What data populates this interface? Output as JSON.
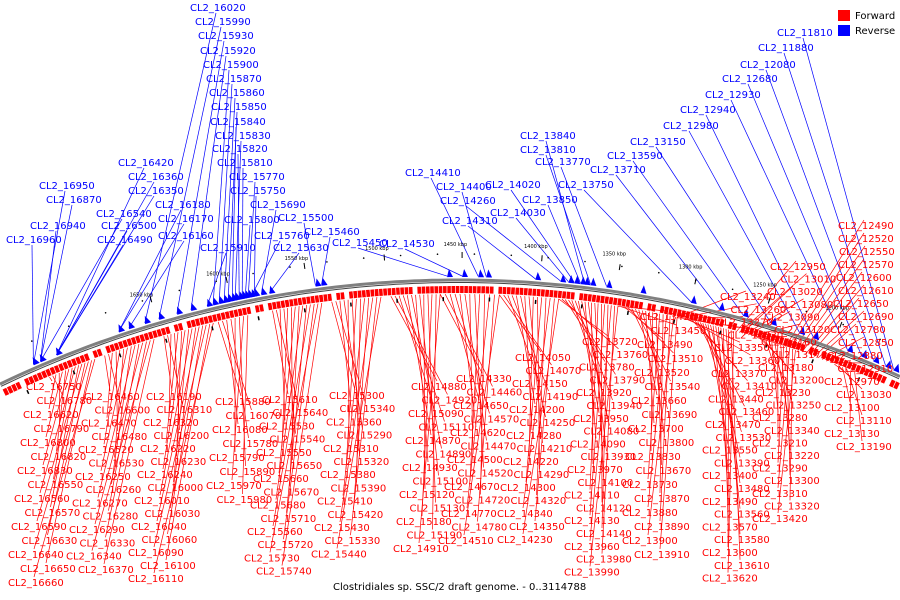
{
  "caption": "Clostridiales sp. SSC/2 draft genome. - 0..3114788",
  "legend": {
    "items": [
      {
        "label": "Forward",
        "color": "#ff0000"
      },
      {
        "label": "Reverse",
        "color": "#0000ff"
      }
    ]
  },
  "colors": {
    "forward": "#ff0000",
    "reverse": "#0000ff",
    "backbone": "#808080"
  },
  "kbp_ticks": [
    "1200 kbp",
    "1250 kbp",
    "1300 kbp",
    "1350 kbp",
    "1400 kbp",
    "1450 kbp",
    "1500 kbp",
    "1550 kbp",
    "1600 kbp",
    "1650 kbp"
  ],
  "reverse_labels": [
    "CL2_11810",
    "CL2_11880",
    "CL2_12080",
    "CL2_12680",
    "CL2_12930",
    "CL2_12940",
    "CL2_12980",
    "CL2_13150",
    "CL2_13590",
    "CL2_13710",
    "CL2_13750",
    "CL2_13770",
    "CL2_13810",
    "CL2_13840",
    "CL2_13850",
    "CL2_14020",
    "CL2_14030",
    "CL2_14260",
    "CL2_14310",
    "CL2_14400",
    "CL2_14410",
    "CL2_14530",
    "CL2_15450",
    "CL2_15460",
    "CL2_15500",
    "CL2_15630",
    "CL2_15690",
    "CL2_15750",
    "CL2_15760",
    "CL2_15770",
    "CL2_15800",
    "CL2_15810",
    "CL2_15820",
    "CL2_15830",
    "CL2_15840",
    "CL2_15850",
    "CL2_15860",
    "CL2_15870",
    "CL2_15900",
    "CL2_15910",
    "CL2_15920",
    "CL2_15930",
    "CL2_15990",
    "CL2_16020",
    "CL2_16160",
    "CL2_16170",
    "CL2_16180",
    "CL2_16350",
    "CL2_16360",
    "CL2_16420",
    "CL2_16490",
    "CL2_16500",
    "CL2_16540",
    "CL2_16870",
    "CL2_16940",
    "CL2_16950",
    "CL2_16960"
  ],
  "forward_col_a": [
    "CL2_16750",
    "CL2_16780",
    "CL2_16620",
    "CL2_16790",
    "CL2_16800",
    "CL2_16820",
    "CL2_16830",
    "CL2_16550",
    "CL2_16560",
    "CL2_16570",
    "CL2_16590",
    "CL2_16630",
    "CL2_16640",
    "CL2_16650",
    "CL2_16660"
  ],
  "forward_col_b": [
    "CL2_16460",
    "CL2_16600",
    "CL2_16470",
    "CL2_16480",
    "CL2_16520",
    "CL2_16530",
    "CL2_16250",
    "CL2_16260",
    "CL2_16270",
    "CL2_16280",
    "CL2_16290",
    "CL2_16330",
    "CL2_16340",
    "CL2_16370"
  ],
  "forward_col_c": [
    "CL2_16190",
    "CL2_16310",
    "CL2_16320",
    "CL2_16200",
    "CL2_16220",
    "CL2_16230",
    "CL2_16240",
    "CL2_16000",
    "CL2_16010",
    "CL2_16030",
    "CL2_16040",
    "CL2_16060",
    "CL2_16090",
    "CL2_16100",
    "CL2_16110"
  ],
  "forward_col_d": [
    "CL2_15880",
    "CL2_16070",
    "CL2_16080",
    "CL2_15780",
    "CL2_15790",
    "CL2_15890",
    "CL2_15970",
    "CL2_15980"
  ],
  "forward_col_e": [
    "CL2_15610",
    "CL2_15640",
    "CL2_15530",
    "CL2_15540",
    "CL2_15550",
    "CL2_15650",
    "CL2_15660",
    "CL2_15670",
    "CL2_15680",
    "CL2_15710",
    "CL2_15560",
    "CL2_15720",
    "CL2_15730",
    "CL2_15740"
  ],
  "forward_col_f": [
    "CL2_15300",
    "CL2_15340",
    "CL2_15360",
    "CL2_15290",
    "CL2_15310",
    "CL2_15320",
    "CL2_15380",
    "CL2_15390",
    "CL2_15410",
    "CL2_15420",
    "CL2_15430",
    "CL2_15330",
    "CL2_15440"
  ],
  "forward_col_g": [
    "CL2_14880",
    "CL2_14920",
    "CL2_15090",
    "CL2_15110",
    "CL2_14870",
    "CL2_14890",
    "CL2_14930",
    "CL2_15100",
    "CL2_15120",
    "CL2_15130",
    "CL2_15180",
    "CL2_15190",
    "CL2_14910"
  ],
  "forward_col_h": [
    "CL2_14330",
    "CL2_14460",
    "CL2_14650",
    "CL2_14570",
    "CL2_14620",
    "CL2_14470",
    "CL2_14500",
    "CL2_14520",
    "CL2_14670",
    "CL2_14720",
    "CL2_14770",
    "CL2_14780",
    "CL2_14510"
  ],
  "forward_col_i": [
    "CL2_14050",
    "CL2_14070",
    "CL2_14150",
    "CL2_14190",
    "CL2_14200",
    "CL2_14250",
    "CL2_14280",
    "CL2_14210",
    "CL2_14220",
    "CL2_14290",
    "CL2_14300",
    "CL2_14320",
    "CL2_14340",
    "CL2_14350",
    "CL2_14230"
  ],
  "forward_col_j": [
    "CL2_13720",
    "CL2_13760",
    "CL2_13780",
    "CL2_13790",
    "CL2_13920",
    "CL2_13940",
    "CL2_13950",
    "CL2_14080",
    "CL2_14090",
    "CL2_13930",
    "CL2_13970",
    "CL2_14100",
    "CL2_14110",
    "CL2_14120",
    "CL2_14130",
    "CL2_14140",
    "CL2_13960",
    "CL2_13980",
    "CL2_13990"
  ],
  "forward_col_k": [
    "CL2_13430",
    "CL2_13450",
    "CL2_13490",
    "CL2_13510",
    "CL2_13520",
    "CL2_13540",
    "CL2_13660",
    "CL2_13690",
    "CL2_13700",
    "CL2_13800",
    "CL2_13830",
    "CL2_13670",
    "CL2_13730",
    "CL2_13870",
    "CL2_13880",
    "CL2_13890",
    "CL2_13900",
    "CL2_13910"
  ],
  "forward_col_l": [
    "CL2_13240",
    "CL2_13260",
    "CL2_13270",
    "CL2_13330",
    "CL2_13350",
    "CL2_13360",
    "CL2_13370",
    "CL2_13410",
    "CL2_13440",
    "CL2_13460",
    "CL2_13470",
    "CL2_13530",
    "CL2_13550",
    "CL2_13390",
    "CL2_13400",
    "CL2_13480",
    "CL2_13490",
    "CL2_13560",
    "CL2_13570",
    "CL2_13580",
    "CL2_13600",
    "CL2_13610",
    "CL2_13620",
    "CL2_13630"
  ],
  "forward_col_m": [
    "CL2_12950",
    "CL2_13010",
    "CL2_13020",
    "CL2_13080",
    "CL2_13090",
    "CL2_13120",
    "CL2_13160",
    "CL2_13170",
    "CL2_13180",
    "CL2_13200",
    "CL2_13230",
    "CL2_13250",
    "CL2_13280",
    "CL2_13340",
    "CL2_13210",
    "CL2_13220",
    "CL2_13290",
    "CL2_13300",
    "CL2_13310",
    "CL2_13320",
    "CL2_13420"
  ],
  "forward_col_n": [
    "CL2_12490",
    "CL2_12520",
    "CL2_12550",
    "CL2_12570",
    "CL2_12600",
    "CL2_12610",
    "CL2_12650",
    "CL2_12690",
    "CL2_12780",
    "CL2_12850",
    "CL2_12880",
    "CL2_12910",
    "CL2_12970",
    "CL2_13030",
    "CL2_13100",
    "CL2_13110",
    "CL2_13130",
    "CL2_13190"
  ]
}
